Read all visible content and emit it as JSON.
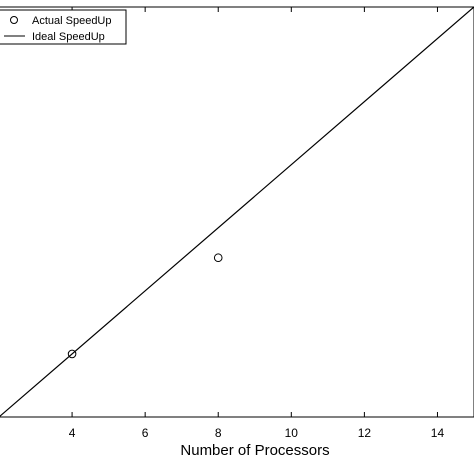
{
  "chart_data": {
    "type": "scatter",
    "title": "",
    "xlabel": "Number of Processors",
    "ylabel": "",
    "xlim": [
      2,
      15
    ],
    "ylim": [
      2,
      15
    ],
    "xticks": [
      4,
      6,
      8,
      10,
      12,
      14
    ],
    "xtick_labels": [
      "4",
      "6",
      "8",
      "10",
      "12",
      "14"
    ],
    "grid": false,
    "legend_position": "top-left",
    "series": [
      {
        "name": "Actual SpeedUp",
        "kind": "markers",
        "marker": "open-circle",
        "x": [
          4,
          8
        ],
        "y": [
          4.0,
          7.05
        ]
      },
      {
        "name": "Ideal SpeedUp",
        "kind": "line",
        "x": [
          2,
          15
        ],
        "y": [
          2,
          15
        ]
      }
    ]
  }
}
